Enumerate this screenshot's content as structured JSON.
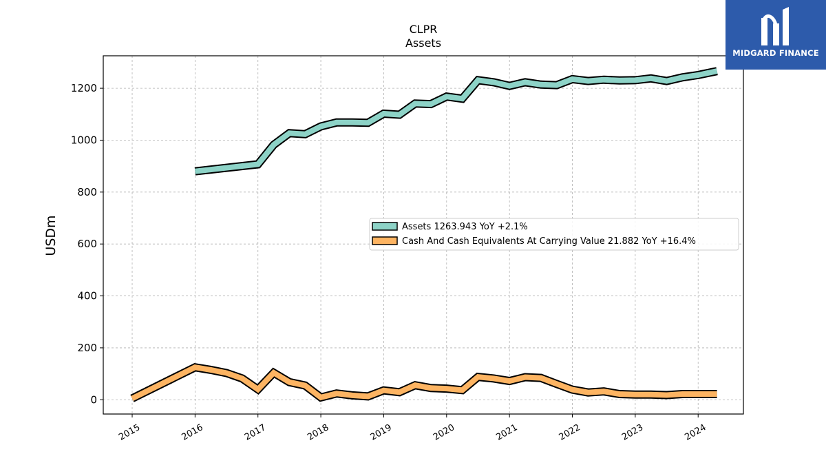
{
  "chart_data": {
    "type": "line",
    "title": "CLPR",
    "subtitle": "Assets",
    "xlabel": "",
    "ylabel": "USDm",
    "xlim": [
      2014.54,
      2024.72
    ],
    "ylim": [
      -55,
      1325
    ],
    "yticks": [
      0,
      200,
      400,
      600,
      800,
      1000,
      1200
    ],
    "xticks": [
      2015,
      2016,
      2017,
      2018,
      2019,
      2020,
      2021,
      2022,
      2023,
      2024
    ],
    "grid": true,
    "legend_position": "center-right",
    "series": [
      {
        "name": "Assets",
        "legend_label": "Assets  1263.943 YoY +2.1%",
        "color": "#8dd3c7",
        "x": [
          2016.0,
          2017.0,
          2017.25,
          2017.5,
          2017.75,
          2018.0,
          2018.25,
          2018.5,
          2018.75,
          2019.0,
          2019.25,
          2019.5,
          2019.75,
          2020.0,
          2020.25,
          2020.5,
          2020.75,
          2021.0,
          2021.25,
          2021.5,
          2021.75,
          2022.0,
          2022.25,
          2022.5,
          2022.75,
          2023.0,
          2023.25,
          2023.5,
          2023.75,
          2024.0,
          2024.3
        ],
        "y": [
          880,
          907,
          982,
          1027,
          1023,
          1053,
          1068,
          1068,
          1067,
          1102,
          1098,
          1141,
          1139,
          1168,
          1160,
          1231,
          1223,
          1209,
          1223,
          1214,
          1212,
          1235,
          1228,
          1233,
          1230,
          1231,
          1238,
          1228,
          1242,
          1251,
          1266
        ]
      },
      {
        "name": "Cash And Cash Equivalents At Carrying Value",
        "legend_label": "Cash And Cash Equivalents At Carrying Value  21.882 YoY +16.4%",
        "color": "#fdb462",
        "x": [
          2015.0,
          2016.0,
          2016.25,
          2016.5,
          2016.75,
          2017.0,
          2017.25,
          2017.5,
          2017.75,
          2018.0,
          2018.25,
          2018.5,
          2018.75,
          2019.0,
          2019.25,
          2019.5,
          2019.75,
          2020.0,
          2020.25,
          2020.5,
          2020.75,
          2021.0,
          2021.25,
          2021.5,
          2021.75,
          2022.0,
          2022.25,
          2022.5,
          2022.75,
          2023.0,
          2023.25,
          2023.5,
          2023.75,
          2024.0,
          2024.3
        ],
        "y": [
          5,
          125,
          115,
          103,
          82,
          40,
          104,
          68,
          55,
          9,
          24,
          17,
          13,
          36,
          29,
          56,
          45,
          43,
          37,
          88,
          82,
          72,
          87,
          84,
          61,
          39,
          28,
          32,
          22,
          20,
          20,
          18,
          22,
          22,
          22
        ]
      }
    ]
  },
  "logo": {
    "brand": "MIDGARD FINANCE",
    "color": "#2d5bab",
    "icon": "midgard-logo-icon"
  }
}
